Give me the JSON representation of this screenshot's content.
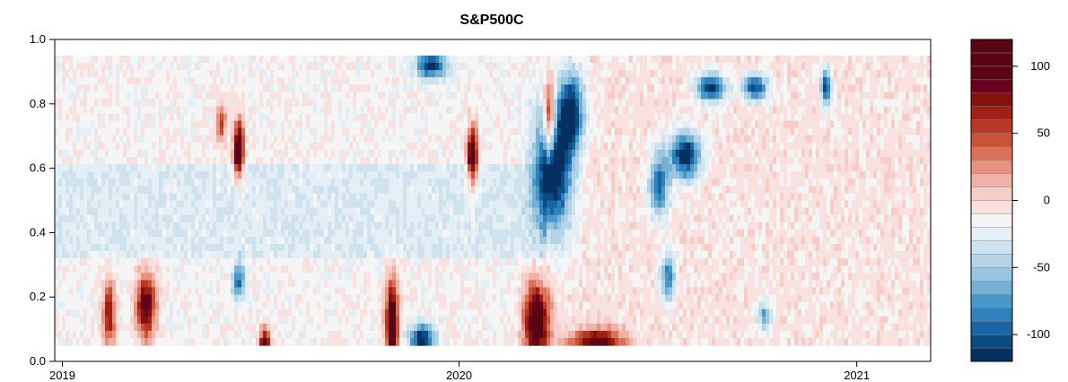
{
  "chart_data": {
    "type": "heatmap",
    "title": "S&P500C",
    "xlabel": "",
    "ylabel": "",
    "x_ticks": [
      "2019",
      "2020",
      "2021"
    ],
    "x_range": [
      "2018-12-25",
      "2021-03-10"
    ],
    "y_ticks": [
      "0.0",
      "0.2",
      "0.4",
      "0.6",
      "0.8",
      "1.0"
    ],
    "ylim": [
      0.0,
      1.0
    ],
    "data_y_range": [
      0.05,
      0.95
    ],
    "colorbar": {
      "levels": [
        -120,
        -110,
        -100,
        -90,
        -80,
        -70,
        -60,
        -50,
        -40,
        -30,
        -20,
        -10,
        0,
        10,
        20,
        30,
        40,
        50,
        60,
        70,
        80,
        90,
        100,
        110,
        120
      ],
      "colors": [
        "#053061",
        "#0c4a82",
        "#1765a3",
        "#2f81bb",
        "#4a98c9",
        "#74b1d5",
        "#98c5df",
        "#b3d3e7",
        "#cfe3ef",
        "#e4eef5",
        "#f5f5f5",
        "#f9e1df",
        "#f6cdc7",
        "#efb2a6",
        "#e6927f",
        "#da7158",
        "#c9533a",
        "#b53925",
        "#9e2016",
        "#84110c",
        "#67001f",
        "#5a0612"
      ],
      "tick_labels": [
        "100",
        "50",
        "0",
        "-50",
        "-100"
      ],
      "tick_values": [
        100,
        50,
        0,
        -50,
        -100
      ]
    }
  }
}
